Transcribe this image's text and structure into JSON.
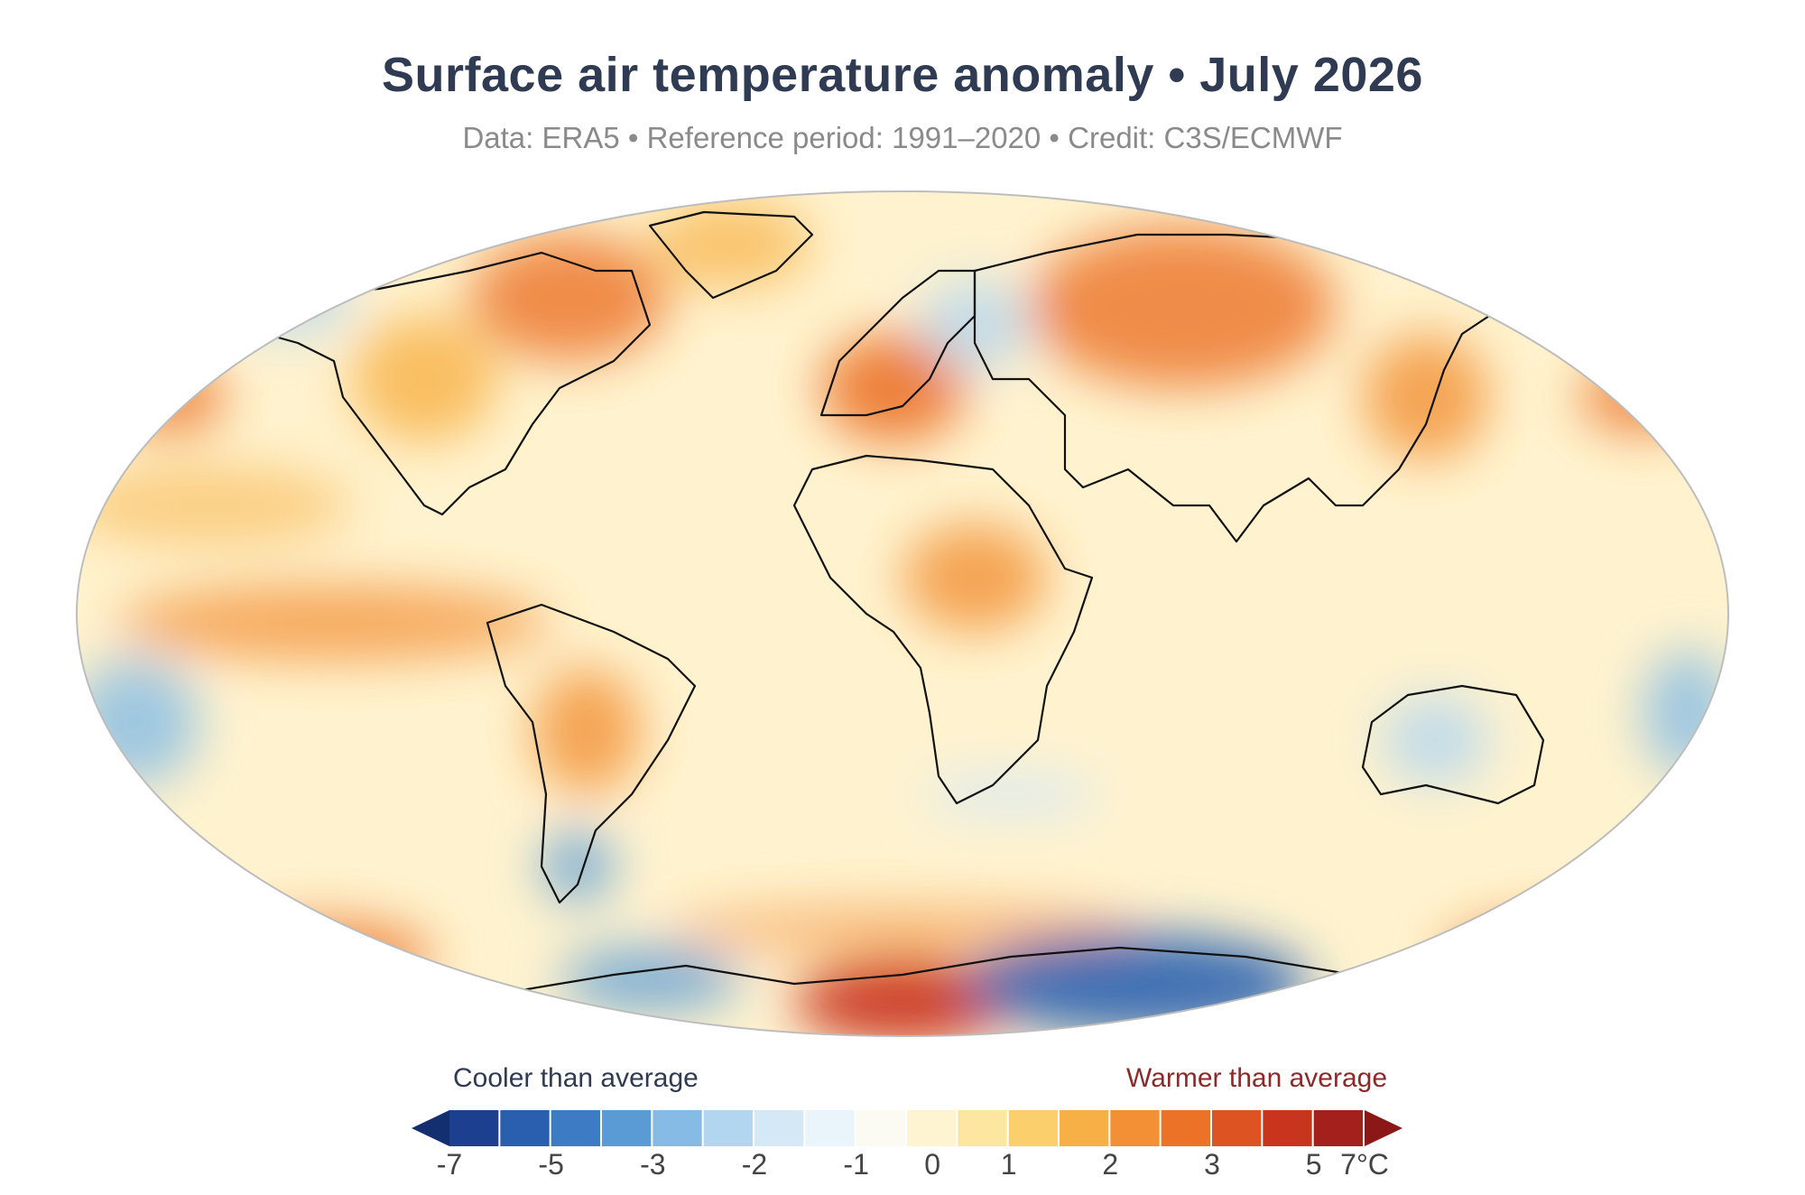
{
  "header": {
    "title": "Surface air temperature anomaly • July 2026",
    "subtitle": "Data: ERA5 • Reference period: 1991–2020 • Credit: C3S/ECMWF"
  },
  "map": {
    "projection": "Robinson",
    "variable": "surface air temperature anomaly",
    "coastlines": true,
    "ocean_base_color": "#fff3cf",
    "land_base_color": "#fde2a6"
  },
  "legend": {
    "cool_label": "Cooler than average",
    "warm_label": "Warmer than average",
    "ticks": [
      "-7",
      "-5",
      "-3",
      "-2",
      "-1",
      "0",
      "1",
      "2",
      "3",
      "5",
      "7°C"
    ],
    "colors": [
      "#1c3f8f",
      "#2a5fb0",
      "#3d7cc4",
      "#5a9bd5",
      "#86bbe5",
      "#b3d6f0",
      "#d5e8f6",
      "#eaf4fb",
      "#fbfbf4",
      "#fff4d2",
      "#fde6a0",
      "#fbd06c",
      "#f7b045",
      "#f39035",
      "#ec7228",
      "#de5322",
      "#c9341e",
      "#a3201c"
    ],
    "min_arrow_color": "#142f70",
    "max_arrow_color": "#8c1717"
  }
}
